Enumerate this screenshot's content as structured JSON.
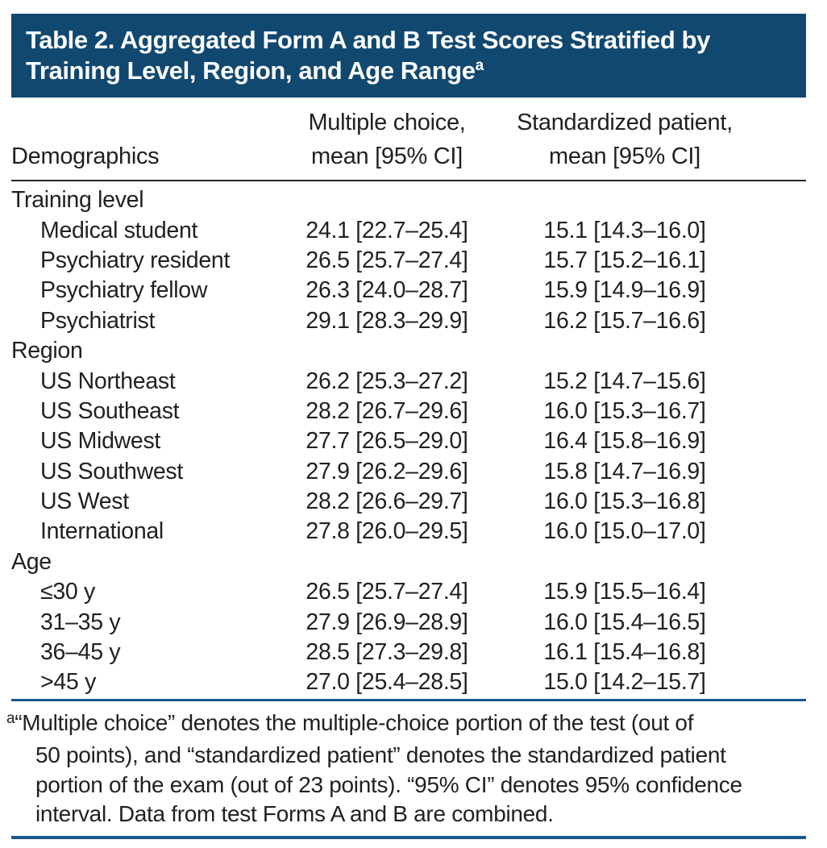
{
  "colors": {
    "header_background": "#114870",
    "header_text": "#FFFFFF",
    "body_text": "#231F20",
    "rule_dark": "#262626",
    "rule_blue": "#19578A"
  },
  "header": {
    "title_line1": "Table 2. Aggregated Form A and B Test Scores Stratified by",
    "title_line2": "Training Level, Region, and Age Range",
    "title_superscript": "a"
  },
  "columns": {
    "demographics": "Demographics",
    "col2_line1": "Multiple choice,",
    "col2_line2": "mean [95% CI]",
    "col3_line1": "Standardized patient,",
    "col3_line2": "mean [95% CI]"
  },
  "table": {
    "rows": [
      {
        "type": "section",
        "label": "Training level",
        "mc": "",
        "sp": ""
      },
      {
        "type": "data",
        "label": "Medical student",
        "mc": "24.1 [22.7–25.4]",
        "sp": "15.1 [14.3–16.0]"
      },
      {
        "type": "data",
        "label": "Psychiatry resident",
        "mc": "26.5 [25.7–27.4]",
        "sp": "15.7 [15.2–16.1]"
      },
      {
        "type": "data",
        "label": "Psychiatry fellow",
        "mc": "26.3 [24.0–28.7]",
        "sp": "15.9 [14.9–16.9]"
      },
      {
        "type": "data",
        "label": "Psychiatrist",
        "mc": "29.1 [28.3–29.9]",
        "sp": "16.2 [15.7–16.6]"
      },
      {
        "type": "section",
        "label": "Region",
        "mc": "",
        "sp": ""
      },
      {
        "type": "data",
        "label": "US Northeast",
        "mc": "26.2 [25.3–27.2]",
        "sp": "15.2 [14.7–15.6]"
      },
      {
        "type": "data",
        "label": "US Southeast",
        "mc": "28.2 [26.7–29.6]",
        "sp": "16.0 [15.3–16.7]"
      },
      {
        "type": "data",
        "label": "US Midwest",
        "mc": "27.7 [26.5–29.0]",
        "sp": "16.4 [15.8–16.9]"
      },
      {
        "type": "data",
        "label": "US Southwest",
        "mc": "27.9 [26.2–29.6]",
        "sp": "15.8 [14.7–16.9]"
      },
      {
        "type": "data",
        "label": "US West",
        "mc": "28.2 [26.6–29.7]",
        "sp": "16.0 [15.3–16.8]"
      },
      {
        "type": "data",
        "label": "International",
        "mc": "27.8 [26.0–29.5]",
        "sp": "16.0 [15.0–17.0]"
      },
      {
        "type": "section",
        "label": "Age",
        "mc": "",
        "sp": ""
      },
      {
        "type": "data",
        "label": "≤30 y",
        "mc": "26.5 [25.7–27.4]",
        "sp": "15.9 [15.5–16.4]"
      },
      {
        "type": "data",
        "label": "31–35 y",
        "mc": "27.9 [26.9–28.9]",
        "sp": "16.0 [15.4–16.5]"
      },
      {
        "type": "data",
        "label": "36–45 y",
        "mc": "28.5 [27.3–29.8]",
        "sp": "16.1 [15.4–16.8]"
      },
      {
        "type": "data",
        "label": ">45 y",
        "mc": "27.0 [25.4–28.5]",
        "sp": "15.0 [14.2–15.7]"
      }
    ]
  },
  "footnote": {
    "superscript": "a",
    "lines": [
      "“Multiple choice” denotes the multiple-choice portion of the test (out of",
      "50 points), and “standardized patient” denotes the standardized patient",
      "portion of the exam (out of 23 points). “95% CI” denotes 95% confidence",
      "interval. Data from test Forms A and B are combined."
    ]
  }
}
